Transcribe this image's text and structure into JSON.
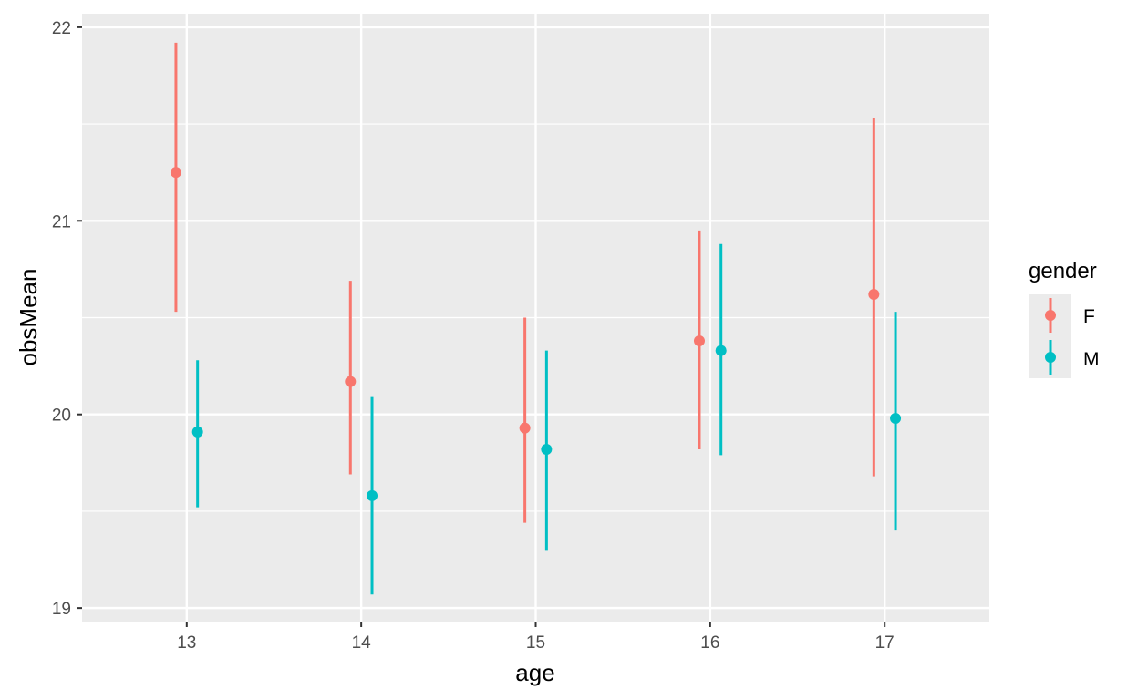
{
  "chart_data": {
    "type": "scatter",
    "xlabel": "age",
    "ylabel": "obsMean",
    "xlim": [
      12.4,
      17.6
    ],
    "ylim": [
      18.93,
      22.07
    ],
    "x_ticks": [
      "13",
      "14",
      "15",
      "16",
      "17"
    ],
    "y_ticks": [
      "19",
      "20",
      "21",
      "22"
    ],
    "grid": true,
    "legend": {
      "title": "gender",
      "position": "right"
    },
    "series": [
      {
        "name": "F",
        "color": "#F8766D",
        "points": [
          {
            "age": 13,
            "mean": 21.25,
            "lower": 20.53,
            "upper": 21.92
          },
          {
            "age": 14,
            "mean": 20.17,
            "lower": 19.69,
            "upper": 20.69
          },
          {
            "age": 15,
            "mean": 19.93,
            "lower": 19.44,
            "upper": 20.5
          },
          {
            "age": 16,
            "mean": 20.38,
            "lower": 19.82,
            "upper": 20.95
          },
          {
            "age": 17,
            "mean": 20.62,
            "lower": 19.68,
            "upper": 21.53
          }
        ]
      },
      {
        "name": "M",
        "color": "#00BFC4",
        "points": [
          {
            "age": 13,
            "mean": 19.91,
            "lower": 19.52,
            "upper": 20.28
          },
          {
            "age": 14,
            "mean": 19.58,
            "lower": 19.07,
            "upper": 20.09
          },
          {
            "age": 15,
            "mean": 19.82,
            "lower": 19.3,
            "upper": 20.33
          },
          {
            "age": 16,
            "mean": 20.33,
            "lower": 19.79,
            "upper": 20.88
          },
          {
            "age": 17,
            "mean": 19.98,
            "lower": 19.4,
            "upper": 20.53
          }
        ]
      }
    ]
  }
}
